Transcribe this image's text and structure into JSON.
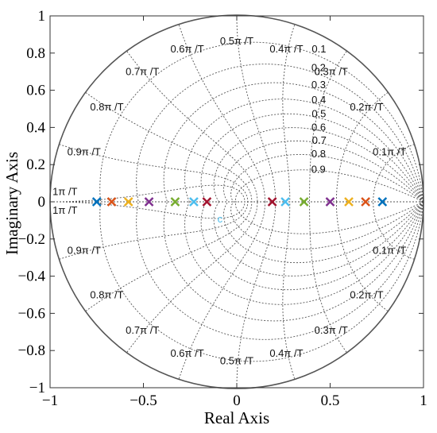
{
  "chart_data": {
    "type": "scatter",
    "title": "",
    "xlabel": "Real Axis",
    "ylabel": "Imaginary Axis",
    "xlim": [
      -1,
      1
    ],
    "ylim": [
      -1,
      1
    ],
    "x_ticks": [
      -1,
      -0.5,
      0,
      0.5,
      1
    ],
    "y_ticks": [
      -1,
      -0.8,
      -0.6,
      -0.4,
      -0.2,
      0,
      0.2,
      0.4,
      0.6,
      0.8,
      1
    ],
    "x_tick_labels": [
      "−1",
      "−0.5",
      "0",
      "0.5",
      "1"
    ],
    "y_tick_labels": [
      "−1",
      "−0.8",
      "−0.6",
      "−0.4",
      "−0.2",
      "0",
      "0.2",
      "0.4",
      "0.6",
      "0.8",
      "1"
    ],
    "grid": true,
    "unit_circle": true,
    "grid_annotation": "zgrid",
    "damping_ratios": [
      0.1,
      0.2,
      0.3,
      0.4,
      0.5,
      0.6,
      0.7,
      0.8,
      0.9
    ],
    "damping_labels": [
      "0.1",
      "0.2",
      "0.3",
      "0.4",
      "0.5",
      "0.6",
      "0.7",
      "0.8",
      "0.9"
    ],
    "natural_frequencies": [
      0.1,
      0.2,
      0.3,
      0.4,
      0.5,
      0.6,
      0.7,
      0.8,
      0.9,
      1.0
    ],
    "frequency_labels": [
      "0.1π /T",
      "0.2π /T",
      "0.3π /T",
      "0.4π /T",
      "0.5π /T",
      "0.6π /T",
      "0.7π /T",
      "0.8π /T",
      "0.9π /T",
      "1π /T"
    ],
    "marker": "x",
    "series": [
      {
        "color": "#0072BD",
        "x": [
          -0.75,
          0.78
        ],
        "y": [
          0,
          0
        ]
      },
      {
        "color": "#D95319",
        "x": [
          -0.67,
          0.69
        ],
        "y": [
          0,
          0
        ]
      },
      {
        "color": "#EDB120",
        "x": [
          -0.58,
          0.6
        ],
        "y": [
          0,
          0
        ]
      },
      {
        "color": "#7E2F8E",
        "x": [
          -0.47,
          0.5
        ],
        "y": [
          0,
          0
        ]
      },
      {
        "color": "#77AC30",
        "x": [
          -0.33,
          0.36
        ],
        "y": [
          0,
          0
        ]
      },
      {
        "color": "#4DBEEE",
        "x": [
          -0.23,
          0.26
        ],
        "y": [
          0,
          0
        ]
      },
      {
        "color": "#A2142F",
        "x": [
          -0.16,
          0.19
        ],
        "y": [
          0,
          0
        ]
      }
    ],
    "annotations": [
      {
        "text": "c",
        "x": -0.09,
        "y": -0.09,
        "color": "#4DBEEE"
      }
    ]
  }
}
